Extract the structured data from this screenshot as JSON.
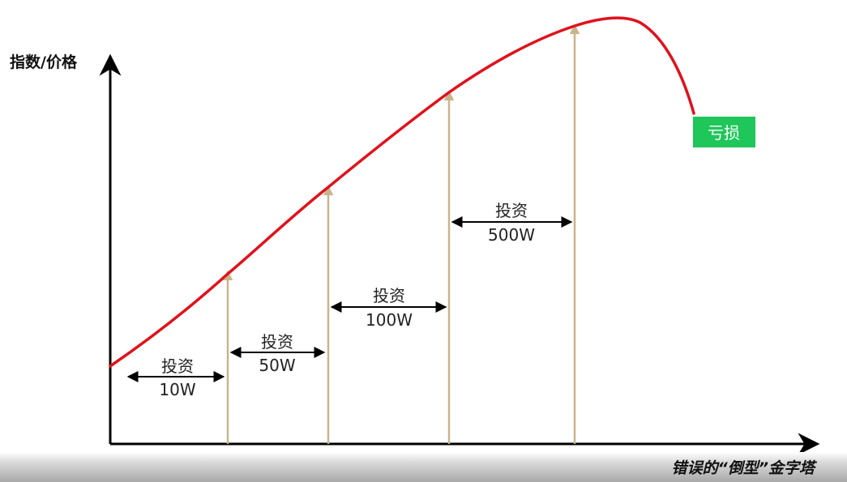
{
  "y_axis_label": "指数/价格",
  "loss_label": "亏损",
  "caption": "错误的“倒型”金字塔",
  "segments": [
    {
      "line1": "投资",
      "line2": "10W"
    },
    {
      "line1": "投资",
      "line2": "50W"
    },
    {
      "line1": "投资",
      "line2": "100W"
    },
    {
      "line1": "投资",
      "line2": "500W"
    }
  ],
  "colors": {
    "curve": "#e0121b",
    "buy_lines": "#c9b48e",
    "axis": "#000000",
    "loss_badge": "#1fc65a"
  }
}
